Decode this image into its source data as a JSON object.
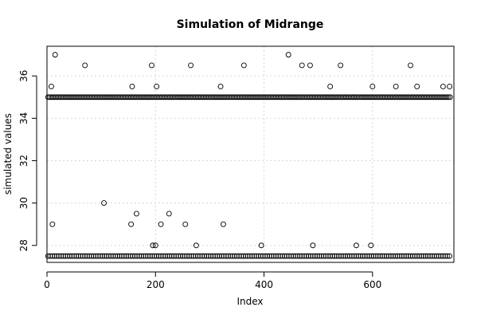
{
  "chart_data": {
    "type": "scatter",
    "title": "Simulation of Midrange",
    "xlabel": "Index",
    "ylabel": "simulated values",
    "xlim": [
      0,
      750
    ],
    "ylim": [
      27.2,
      37.4
    ],
    "x_ticks": [
      0,
      200,
      400,
      600
    ],
    "y_ticks": [
      28,
      30,
      32,
      34,
      36
    ],
    "x_tick_labels": [
      "0",
      "200",
      "400",
      "600"
    ],
    "y_tick_labels": [
      "28",
      "30",
      "32",
      "34",
      "36"
    ],
    "grid": true,
    "series": [
      {
        "points": [
          [
            10,
            29.0
          ],
          [
            15,
            37.0
          ],
          [
            8,
            35.5
          ],
          [
            70,
            36.5
          ],
          [
            105,
            30.0
          ],
          [
            155,
            29.0
          ],
          [
            157,
            35.5
          ],
          [
            165,
            29.5
          ],
          [
            193,
            36.5
          ],
          [
            195,
            28.0
          ],
          [
            200,
            28.0
          ],
          [
            202,
            35.5
          ],
          [
            210,
            29.0
          ],
          [
            225,
            29.5
          ],
          [
            255,
            29.0
          ],
          [
            265,
            36.5
          ],
          [
            275,
            28.0
          ],
          [
            320,
            35.5
          ],
          [
            325,
            29.0
          ],
          [
            363,
            36.5
          ],
          [
            395,
            28.0
          ],
          [
            445,
            37.0
          ],
          [
            470,
            36.5
          ],
          [
            485,
            36.5
          ],
          [
            490,
            28.0
          ],
          [
            522,
            35.5
          ],
          [
            541,
            36.5
          ],
          [
            570,
            28.0
          ],
          [
            597,
            28.0
          ],
          [
            600,
            35.5
          ],
          [
            643,
            35.5
          ],
          [
            670,
            36.5
          ],
          [
            682,
            35.5
          ],
          [
            730,
            35.5
          ],
          [
            742,
            35.5
          ]
        ],
        "dense_bands": [
          {
            "y": 35.0,
            "x_from": 2,
            "x_to": 745,
            "step": 3
          },
          {
            "y": 27.5,
            "x_from": 2,
            "x_to": 745,
            "step": 4
          }
        ]
      }
    ]
  }
}
